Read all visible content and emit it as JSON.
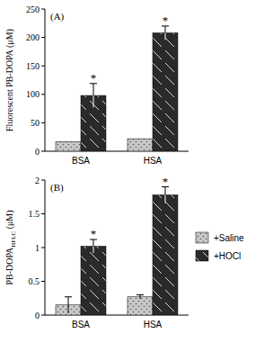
{
  "chart_data": [
    {
      "type": "bar",
      "title": "(A)",
      "y_label": "Fluorescent PB-DOPA (μM)",
      "categories": [
        "BSA",
        "HSA"
      ],
      "ylim": [
        0,
        250
      ],
      "yticks": [
        0,
        50,
        100,
        150,
        200,
        250
      ],
      "series": [
        {
          "color": "#c8c8c8",
          "values": [
            17,
            22
          ],
          "errors": [
            null,
            null
          ]
        },
        {
          "color": "#2a2a2a",
          "values": [
            98,
            208
          ],
          "errors": [
            21,
            12
          ],
          "annotations": [
            "*",
            "*"
          ]
        }
      ]
    },
    {
      "type": "bar",
      "title": "(B)",
      "y_label": [
        {
          "text": "PB-DOPA"
        },
        {
          "text": "HPLC",
          "sub": true
        },
        {
          "text": " (μM)"
        }
      ],
      "categories": [
        "BSA",
        "HSA"
      ],
      "ylim": [
        0,
        2
      ],
      "yticks": [
        0,
        0.5,
        1,
        1.5,
        2
      ],
      "legend": "right",
      "series": [
        {
          "name": "+Saline",
          "color": "#c8c8c8",
          "values": [
            0.15,
            0.27
          ],
          "errors": [
            0.12,
            0.03
          ]
        },
        {
          "name": "+HOCl",
          "color": "#2a2a2a",
          "values": [
            1.02,
            1.78
          ],
          "errors": [
            0.1,
            0.12
          ],
          "annotations": [
            "*",
            "*"
          ]
        }
      ]
    }
  ]
}
